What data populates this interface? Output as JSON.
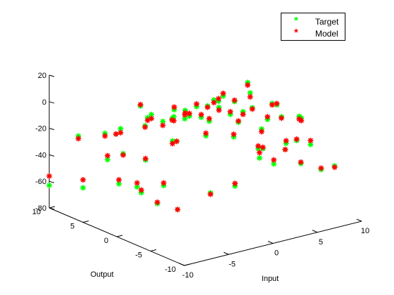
{
  "chart_data": {
    "type": "scatter",
    "projection": "3d",
    "title": "",
    "xlabel": "Input",
    "ylabel": "Output",
    "zlabel": "",
    "xlim": [
      -10,
      10
    ],
    "ylim": [
      -10,
      10
    ],
    "zlim": [
      -80,
      20
    ],
    "x_ticks": [
      "-10",
      "-5",
      "0",
      "5",
      "10"
    ],
    "y_ticks": [
      "-10",
      "-5",
      "0",
      "5",
      "10"
    ],
    "z_ticks": [
      "-80",
      "-60",
      "-40",
      "-20",
      "0",
      "20"
    ],
    "grid": false,
    "legend_position": "top-right",
    "marker": "*",
    "series": [
      {
        "name": "Target",
        "color": "#00ff00",
        "points": [
          [
            -10,
            10,
            -63
          ],
          [
            -10,
            5,
            -54
          ],
          [
            -9,
            1,
            -44
          ],
          [
            -10,
            -3,
            -36
          ],
          [
            -10,
            -6,
            -42
          ],
          [
            -10,
            -9,
            -40
          ],
          [
            -9,
            7,
            -21
          ],
          [
            -8,
            4,
            -34
          ],
          [
            -7,
            3,
            -29
          ],
          [
            -8,
            -1,
            -48
          ],
          [
            -7,
            -3,
            -40
          ],
          [
            -6,
            7,
            -24
          ],
          [
            -6,
            1,
            -31
          ],
          [
            -6,
            -3,
            -8
          ],
          [
            -5,
            6,
            -20
          ],
          [
            -5,
            2,
            -3
          ],
          [
            -4,
            8,
            -30
          ],
          [
            -4,
            -1,
            -16
          ],
          [
            -4,
            -6,
            -44
          ],
          [
            -3,
            5,
            -19
          ],
          [
            -3,
            1,
            -5
          ],
          [
            -3,
            -4,
            -7
          ],
          [
            -2,
            7,
            -10
          ],
          [
            -2,
            2,
            -2
          ],
          [
            -2,
            -2,
            1
          ],
          [
            -2,
            -7,
            -40
          ],
          [
            -1,
            5,
            -19
          ],
          [
            -1,
            0,
            3
          ],
          [
            -1,
            -5,
            8
          ],
          [
            0,
            8,
            -22
          ],
          [
            0,
            3,
            -8
          ],
          [
            0,
            -2,
            5
          ],
          [
            0,
            -8,
            -20
          ],
          [
            1,
            6,
            -21
          ],
          [
            1,
            1,
            -2
          ],
          [
            1,
            -3,
            10
          ],
          [
            1,
            -7,
            -2
          ],
          [
            2,
            5,
            -20
          ],
          [
            2,
            0,
            6
          ],
          [
            2,
            -4,
            17
          ],
          [
            3,
            7,
            -28
          ],
          [
            3,
            2,
            -4
          ],
          [
            3,
            -3,
            2
          ],
          [
            3,
            -8,
            -14
          ],
          [
            4,
            4,
            -9
          ],
          [
            4,
            -1,
            15
          ],
          [
            4,
            -6,
            0
          ],
          [
            5,
            6,
            -31
          ],
          [
            5,
            1,
            -13
          ],
          [
            5,
            -4,
            3
          ],
          [
            5,
            -9,
            -16
          ],
          [
            6,
            3,
            -27
          ],
          [
            6,
            -2,
            -2
          ],
          [
            6,
            -6,
            -3
          ],
          [
            7,
            5,
            -44
          ],
          [
            7,
            0,
            -20
          ],
          [
            7,
            -5,
            -8
          ],
          [
            8,
            2,
            -48
          ],
          [
            8,
            -3,
            -31
          ],
          [
            9,
            4,
            -54
          ],
          [
            9,
            0,
            -46
          ],
          [
            10,
            3,
            -65
          ],
          [
            10,
            -1,
            -56
          ],
          [
            10,
            -4,
            -54
          ],
          [
            10,
            -6,
            -47
          ]
        ]
      },
      {
        "name": "Model",
        "color": "#ff0000",
        "points": [
          [
            -10,
            10,
            -56
          ],
          [
            -10,
            5,
            -48
          ],
          [
            -9,
            1,
            -41
          ],
          [
            -10,
            -3,
            -33
          ],
          [
            -10,
            -6,
            -41
          ],
          [
            -10,
            -9,
            -40
          ],
          [
            -9,
            7,
            -23
          ],
          [
            -8,
            4,
            -31
          ],
          [
            -7,
            3,
            -30
          ],
          [
            -8,
            -1,
            -46
          ],
          [
            -7,
            -3,
            -38
          ],
          [
            -6,
            7,
            -26
          ],
          [
            -6,
            1,
            -30
          ],
          [
            -6,
            -3,
            -10
          ],
          [
            -5,
            6,
            -23
          ],
          [
            -5,
            2,
            -5
          ],
          [
            -4,
            8,
            -30
          ],
          [
            -4,
            -1,
            -16
          ],
          [
            -4,
            -6,
            -45
          ],
          [
            -3,
            5,
            -20
          ],
          [
            -3,
            1,
            -6
          ],
          [
            -3,
            -4,
            -5
          ],
          [
            -2,
            7,
            -9
          ],
          [
            -2,
            2,
            0
          ],
          [
            -2,
            -2,
            3
          ],
          [
            -2,
            -7,
            -38
          ],
          [
            -1,
            5,
            -22
          ],
          [
            -1,
            0,
            5
          ],
          [
            -1,
            -5,
            10
          ],
          [
            0,
            8,
            -25
          ],
          [
            0,
            3,
            -10
          ],
          [
            0,
            -2,
            3
          ],
          [
            0,
            -8,
            -16
          ],
          [
            1,
            6,
            -24
          ],
          [
            1,
            1,
            -3
          ],
          [
            1,
            -3,
            11
          ],
          [
            1,
            -7,
            -4
          ],
          [
            2,
            5,
            -18
          ],
          [
            2,
            0,
            8
          ],
          [
            2,
            -4,
            14
          ],
          [
            3,
            7,
            -25
          ],
          [
            3,
            2,
            -2
          ],
          [
            3,
            -3,
            1
          ],
          [
            3,
            -8,
            -12
          ],
          [
            4,
            4,
            -11
          ],
          [
            4,
            -1,
            13
          ],
          [
            4,
            -6,
            -1
          ],
          [
            5,
            6,
            -29
          ],
          [
            5,
            1,
            -15
          ],
          [
            5,
            -4,
            4
          ],
          [
            5,
            -9,
            -13
          ],
          [
            6,
            3,
            -26
          ],
          [
            6,
            -2,
            -3
          ],
          [
            6,
            -6,
            -5
          ],
          [
            7,
            5,
            -42
          ],
          [
            7,
            0,
            -18
          ],
          [
            7,
            -5,
            -10
          ],
          [
            8,
            2,
            -47
          ],
          [
            8,
            -3,
            -30
          ],
          [
            9,
            4,
            -52
          ],
          [
            9,
            0,
            -46
          ],
          [
            10,
            3,
            -62
          ],
          [
            10,
            -1,
            -55
          ],
          [
            10,
            -4,
            -53
          ],
          [
            10,
            -6,
            -48
          ]
        ]
      }
    ]
  }
}
